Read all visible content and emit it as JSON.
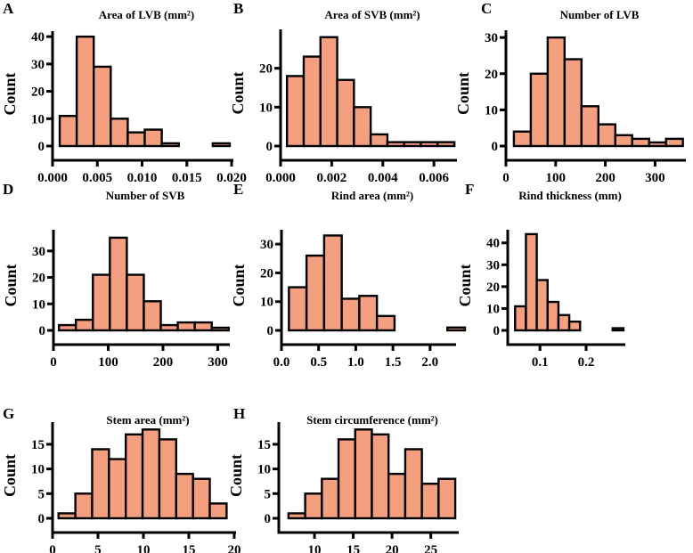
{
  "chart_data": [
    {
      "type": "bar",
      "panel": "A",
      "title": "Area of LVB (mm²)",
      "ylabel": "Count",
      "bin_start": 0.0008,
      "bin_width": 0.0019,
      "counts": [
        11,
        40,
        29,
        10,
        5,
        6,
        1,
        0,
        0,
        1
      ],
      "xlim": [
        0,
        0.0202
      ],
      "ylim": [
        0,
        42
      ],
      "xticks": [
        0,
        0.005,
        0.01,
        0.015,
        0.02
      ],
      "xtick_labels": [
        "0.000",
        "0.005",
        "0.010",
        "0.015",
        "0.020"
      ],
      "yticks": [
        0,
        10,
        20,
        30,
        40
      ],
      "ytick_labels": [
        "0",
        "10",
        "20",
        "30",
        "40"
      ]
    },
    {
      "type": "bar",
      "panel": "B",
      "title": "Area of SVB (mm²)",
      "ylabel": "Count",
      "bin_start": 0.00025,
      "bin_width": 0.000655,
      "counts": [
        18,
        23,
        28,
        17,
        10,
        3,
        1,
        1,
        1,
        1
      ],
      "xlim": [
        0,
        0.0069
      ],
      "ylim": [
        0,
        30
      ],
      "xticks": [
        0,
        0.002,
        0.004,
        0.006
      ],
      "xtick_labels": [
        "0.000",
        "0.002",
        "0.004",
        "0.006"
      ],
      "yticks": [
        0,
        10,
        20
      ],
      "ytick_labels": [
        "0",
        "10",
        "20"
      ]
    },
    {
      "type": "bar",
      "panel": "C",
      "title": "Number of LVB",
      "ylabel": "Count",
      "bin_start": 16,
      "bin_width": 34,
      "counts": [
        4,
        20,
        30,
        24,
        11,
        6,
        3,
        2,
        1,
        2
      ],
      "xlim": [
        0,
        362
      ],
      "ylim": [
        0,
        32
      ],
      "xticks": [
        0,
        100,
        200,
        300
      ],
      "xtick_labels": [
        "0",
        "100",
        "200",
        "300"
      ],
      "yticks": [
        0,
        10,
        20,
        30
      ],
      "ytick_labels": [
        "0",
        "10",
        "20",
        "30"
      ]
    },
    {
      "type": "bar",
      "panel": "D",
      "title": "Number of SVB",
      "ylabel": "Count",
      "bin_start": 10,
      "bin_width": 31,
      "counts": [
        2,
        4,
        21,
        35,
        21,
        11,
        2,
        3,
        3,
        1
      ],
      "xlim": [
        0,
        322
      ],
      "ylim": [
        0,
        38
      ],
      "xticks": [
        0,
        100,
        200,
        300
      ],
      "xtick_labels": [
        "0",
        "100",
        "200",
        "300"
      ],
      "yticks": [
        0,
        10,
        20,
        30
      ],
      "ytick_labels": [
        "0",
        "10",
        "20",
        "30"
      ]
    },
    {
      "type": "bar",
      "panel": "E",
      "title": "Rind area (mm²)",
      "ylabel": "Count",
      "bin_start": 0.1,
      "bin_width": 0.237,
      "counts": [
        15,
        26,
        33,
        11,
        12,
        5,
        0,
        0,
        0,
        1
      ],
      "xlim": [
        0,
        2.35
      ],
      "ylim": [
        0,
        35
      ],
      "xticks": [
        0,
        0.5,
        1.0,
        1.5,
        2.0
      ],
      "xtick_labels": [
        "0.0",
        "0.5",
        "1.0",
        "1.5",
        "2.0"
      ],
      "yticks": [
        0,
        10,
        20,
        30
      ],
      "ytick_labels": [
        "0",
        "10",
        "20",
        "30"
      ]
    },
    {
      "type": "bar",
      "panel": "F",
      "title": "Rind thickness (mm)",
      "ylabel": "Count",
      "bin_start": 0.046,
      "bin_width": 0.0235,
      "counts": [
        11,
        44,
        23,
        13,
        7,
        4,
        0,
        0,
        0,
        1
      ],
      "xlim": [
        0.03,
        0.285
      ],
      "ylim": [
        0,
        46
      ],
      "xticks": [
        0.1,
        0.2
      ],
      "xtick_labels": [
        "0.1",
        "0.2"
      ],
      "yticks": [
        0,
        10,
        20,
        30,
        40
      ],
      "ytick_labels": [
        "0",
        "10",
        "20",
        "30",
        "40"
      ]
    },
    {
      "type": "bar",
      "panel": "G",
      "title": "Stem area (mm²)",
      "ylabel": "Count",
      "bin_start": 0.66,
      "bin_width": 1.85,
      "counts": [
        1,
        5,
        14,
        12,
        17,
        18,
        16,
        9,
        8,
        3
      ],
      "xlim": [
        0,
        20.2
      ],
      "ylim": [
        0,
        19.5
      ],
      "xticks": [
        0,
        5,
        10,
        15,
        20
      ],
      "xtick_labels": [
        "0",
        "5",
        "10",
        "15",
        "20"
      ],
      "yticks": [
        0,
        5,
        10,
        15
      ],
      "ytick_labels": [
        "0",
        "5",
        "10",
        "15"
      ]
    },
    {
      "type": "bar",
      "panel": "H",
      "title": "Stem circumference (mm²)",
      "ylabel": "Count",
      "bin_start": 6.65,
      "bin_width": 2.15,
      "counts": [
        1,
        5,
        8,
        16,
        18,
        17,
        9,
        14,
        7,
        8
      ],
      "xlim": [
        5.4,
        28.6
      ],
      "ylim": [
        0,
        19.5
      ],
      "xticks": [
        10,
        15,
        20,
        25
      ],
      "xtick_labels": [
        "10",
        "15",
        "20",
        "25"
      ],
      "yticks": [
        0,
        5,
        10,
        15
      ],
      "ytick_labels": [
        "0",
        "5",
        "10",
        "15"
      ]
    }
  ]
}
